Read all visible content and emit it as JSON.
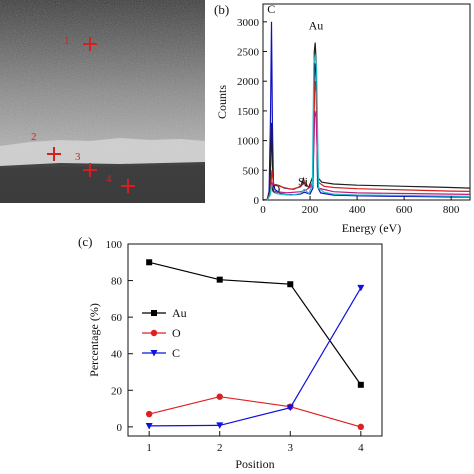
{
  "panel_a": {
    "markers": [
      {
        "label": "1"
      },
      {
        "label": "2"
      },
      {
        "label": "3"
      },
      {
        "label": "4"
      }
    ],
    "marker_color": "#d62020"
  },
  "chart_data": [
    {
      "panel": "(b)",
      "type": "line",
      "xlabel": "Energy (eV)",
      "ylabel": "Counts",
      "xlim": [
        0,
        880
      ],
      "ylim": [
        0,
        3300
      ],
      "x_ticks": [
        "0",
        "200",
        "400",
        "600",
        "800"
      ],
      "y_ticks": [
        "0",
        "500",
        "1000",
        "1500",
        "2000",
        "2500",
        "3000"
      ],
      "annotations": [
        {
          "text": "C",
          "x": 35,
          "y": 3150
        },
        {
          "text": "Au",
          "x": 225,
          "y": 2870
        },
        {
          "text": "O",
          "x": 55,
          "y": 120
        },
        {
          "text": "Si",
          "x": 170,
          "y": 240
        }
      ],
      "series": [
        {
          "color": "#1010c0",
          "x": [
            0,
            18,
            26,
            32,
            36,
            40,
            44,
            50,
            60,
            75,
            100,
            140,
            160,
            175,
            185,
            200,
            212,
            218,
            222,
            226,
            232,
            245,
            300,
            400,
            500,
            600,
            700,
            800,
            880
          ],
          "y": [
            0,
            5,
            150,
            1400,
            3000,
            1300,
            300,
            180,
            150,
            110,
            90,
            90,
            100,
            130,
            120,
            100,
            200,
            2200,
            2300,
            2000,
            220,
            120,
            80,
            70,
            65,
            60,
            55,
            50,
            50
          ]
        },
        {
          "color": "#202020",
          "x": [
            0,
            20,
            30,
            36,
            40,
            45,
            55,
            70,
            90,
            130,
            160,
            172,
            180,
            195,
            212,
            218,
            222,
            226,
            232,
            250,
            300,
            400,
            500,
            600,
            700,
            800,
            880
          ],
          "y": [
            0,
            10,
            200,
            1300,
            600,
            250,
            260,
            240,
            200,
            180,
            230,
            360,
            240,
            220,
            400,
            2500,
            2650,
            2300,
            380,
            300,
            270,
            250,
            240,
            230,
            220,
            210,
            200
          ]
        },
        {
          "color": "#d62020",
          "x": [
            0,
            20,
            32,
            38,
            45,
            60,
            80,
            120,
            160,
            175,
            195,
            212,
            220,
            226,
            235,
            260,
            300,
            400,
            500,
            600,
            700,
            800,
            880
          ],
          "y": [
            0,
            10,
            150,
            500,
            260,
            250,
            220,
            180,
            220,
            320,
            200,
            300,
            2000,
            1800,
            300,
            230,
            210,
            190,
            180,
            170,
            160,
            150,
            145
          ]
        },
        {
          "color": "#c0187a",
          "x": [
            0,
            20,
            32,
            38,
            45,
            60,
            100,
            160,
            180,
            212,
            220,
            226,
            235,
            300,
            400,
            600,
            800,
            880
          ],
          "y": [
            0,
            10,
            120,
            300,
            150,
            140,
            120,
            140,
            160,
            250,
            1500,
            1400,
            200,
            140,
            120,
            110,
            100,
            95
          ]
        },
        {
          "color": "#18c0c8",
          "x": [
            0,
            20,
            30,
            36,
            42,
            50,
            70,
            120,
            160,
            175,
            195,
            210,
            216,
            222,
            228,
            236,
            260,
            300,
            400,
            500,
            600,
            700,
            800,
            880
          ],
          "y": [
            0,
            10,
            80,
            260,
            150,
            120,
            100,
            80,
            110,
            180,
            110,
            250,
            2300,
            2450,
            2200,
            200,
            130,
            100,
            85,
            80,
            75,
            70,
            65,
            60
          ]
        }
      ]
    },
    {
      "panel": "(c)",
      "type": "line",
      "xlabel": "Position",
      "ylabel": "Percentage (%)",
      "xlim": [
        0.7,
        4.3
      ],
      "ylim": [
        -5,
        100
      ],
      "categories": [
        "1",
        "2",
        "3",
        "4"
      ],
      "y_ticks": [
        "0",
        "20",
        "40",
        "60",
        "80",
        "100"
      ],
      "legend_position": "left",
      "series": [
        {
          "name": "Au",
          "color": "#000000",
          "marker": "square",
          "values": [
            90,
            80.5,
            78,
            23
          ]
        },
        {
          "name": "O",
          "color": "#e02020",
          "marker": "circle",
          "values": [
            7,
            16.5,
            11,
            0
          ]
        },
        {
          "name": "C",
          "color": "#1010e0",
          "marker": "triangle-down",
          "values": [
            0.5,
            0.8,
            10.5,
            76
          ]
        }
      ]
    }
  ]
}
